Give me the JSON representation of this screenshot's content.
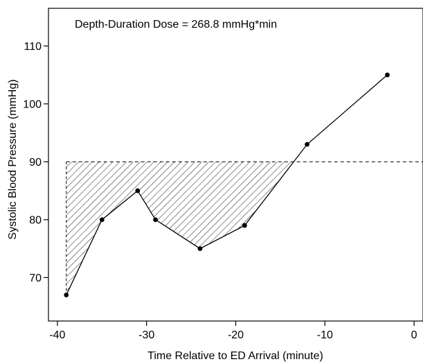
{
  "chart_data": {
    "type": "line",
    "annotation": "Depth-Duration Dose = 268.8 mmHg*min",
    "xlabel": "Time Relative to ED Arrival (minute)",
    "ylabel": "Systolic Blood Pressure (mmHg)",
    "xlim": [
      -41,
      1
    ],
    "ylim": [
      62.5,
      116.5
    ],
    "x_ticks": [
      -40,
      -30,
      -20,
      -10,
      0
    ],
    "y_ticks": [
      70,
      80,
      90,
      100,
      110
    ],
    "threshold": 90,
    "threshold_style": "dashed",
    "shaded_region": "area below 90 mmHg, hatched",
    "series": [
      {
        "x": [
          -39,
          -35,
          -31,
          -29,
          -24,
          -19,
          -12,
          -3
        ],
        "y": [
          67,
          80,
          85,
          80,
          75,
          79,
          93,
          105
        ]
      }
    ],
    "grid": false,
    "colors": {
      "line": "#000000",
      "points": "#000000",
      "hatch": "#000000"
    }
  }
}
